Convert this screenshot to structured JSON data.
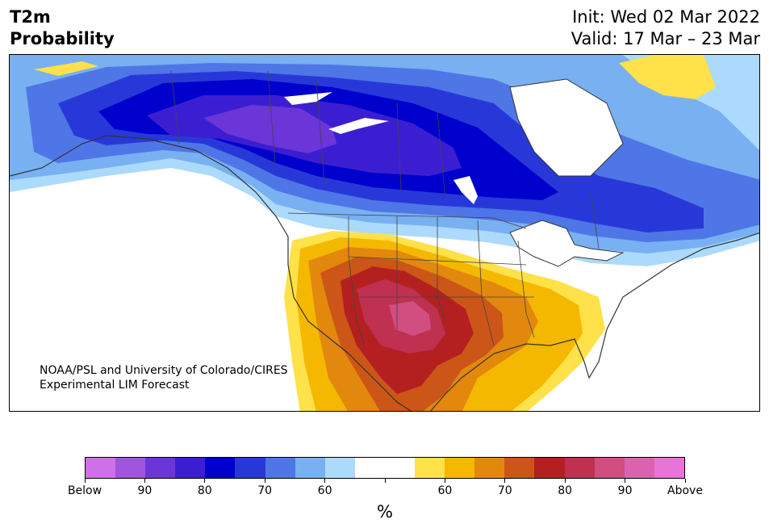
{
  "title": {
    "line1": "T2m",
    "line2": "Probability"
  },
  "init_label": "Init: Wed 02 Mar 2022",
  "valid_label": "Valid: 17 Mar – 23 Mar",
  "credit": {
    "line1": "NOAA/PSL and University of Colorado/CIRES",
    "line2": "Experimental LIM Forecast"
  },
  "colorbar": {
    "unit": "%",
    "colors": [
      "#d070e8",
      "#a055e0",
      "#6b35d8",
      "#3c1ed2",
      "#0000cc",
      "#2838d8",
      "#4e76e6",
      "#78b0f2",
      "#acdafc",
      "#ffffff",
      "#ffffff",
      "#ffe14a",
      "#f5b800",
      "#e2880c",
      "#cc5518",
      "#b42020",
      "#c03050",
      "#d04e80",
      "#dc62b0",
      "#e874d8"
    ],
    "tick_labels": [
      "Below",
      "90",
      "80",
      "70",
      "60",
      "",
      "60",
      "70",
      "80",
      "90",
      "Above"
    ],
    "colors_named": {
      "land_outline": "#333333",
      "state_border": "#444444"
    }
  }
}
